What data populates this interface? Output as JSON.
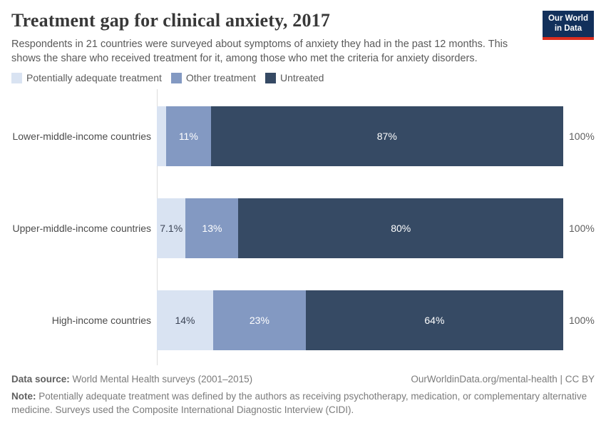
{
  "header": {
    "title": "Treatment gap for clinical anxiety, 2017",
    "subtitle": "Respondents in 21 countries were surveyed about symptoms of anxiety they had in the past 12 months. This shows the share who received treatment for it, among those who met the criteria for anxiety disorders.",
    "logo": {
      "line1": "Our World",
      "line2": "in Data",
      "bg_color": "#12305b",
      "accent_color": "#dc2e1f"
    }
  },
  "legend": {
    "items": [
      {
        "label": "Potentially adequate treatment",
        "color": "#d9e3f2"
      },
      {
        "label": "Other treatment",
        "color": "#8399c2"
      },
      {
        "label": "Untreated",
        "color": "#364a64"
      }
    ]
  },
  "chart_data": {
    "type": "bar",
    "orientation": "horizontal",
    "stacked": true,
    "unit": "%",
    "xlim": [
      0,
      100
    ],
    "grid": false,
    "legend_position": "top-left",
    "categories": [
      "Lower-middle-income countries",
      "Upper-middle-income countries",
      "High-income countries"
    ],
    "series": [
      {
        "name": "Potentially adequate treatment",
        "color": "#d9e3f2",
        "values": [
          2.3,
          7.1,
          14
        ]
      },
      {
        "name": "Other treatment",
        "color": "#8399c2",
        "values": [
          11,
          13,
          23
        ]
      },
      {
        "name": "Untreated",
        "color": "#364a64",
        "values": [
          87,
          80,
          64
        ]
      }
    ],
    "segment_labels": [
      [
        "",
        "11%",
        "87%"
      ],
      [
        "7.1%",
        "13%",
        "80%"
      ],
      [
        "14%",
        "23%",
        "64%"
      ]
    ],
    "segment_label_colors": [
      "#3a4354",
      "#ffffff",
      "#ffffff"
    ],
    "row_total_label": "100%"
  },
  "footer": {
    "source_label": "Data source:",
    "source_text": " World Mental Health surveys (2001–2015)",
    "link_text": "OurWorldinData.org/mental-health | CC BY",
    "note_label": "Note:",
    "note_text": " Potentially adequate treatment was defined by the authors as receiving psychotherapy, medication, or complementary alternative medicine. Surveys used the Composite International Diagnostic Interview (CIDI)."
  }
}
